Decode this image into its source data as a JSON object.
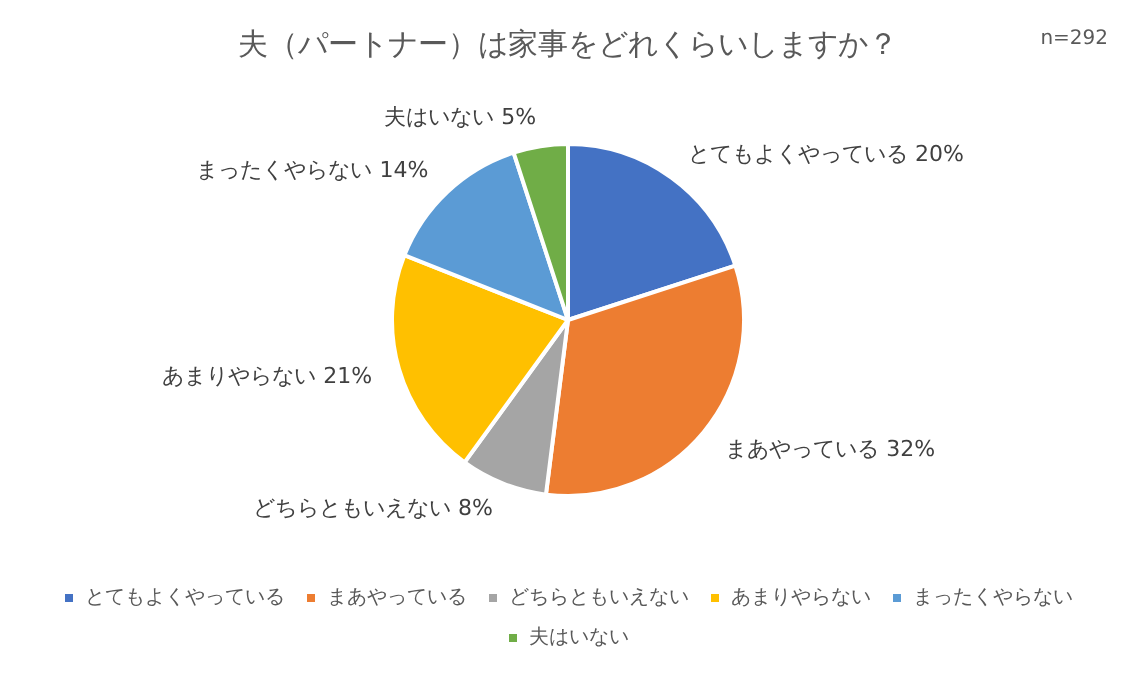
{
  "chart_data": {
    "type": "pie",
    "title": "夫（パートナー）は家事をどれくらいしますか？",
    "annotations": [
      "n=292"
    ],
    "categories": [
      "とてもよくやっている",
      "まあやっている",
      "どちらともいえない",
      "あまりやらない",
      "まったくやらない",
      "夫はいない"
    ],
    "values": [
      20,
      32,
      8,
      21,
      14,
      5
    ],
    "colors": [
      "#4472c4",
      "#ed7d31",
      "#a5a5a5",
      "#ffc000",
      "#5b9bd5",
      "#70ad47"
    ],
    "value_labels": [
      "20%",
      "32%",
      "8%",
      "21%",
      "14%",
      "5%"
    ],
    "legend": "bottom"
  }
}
